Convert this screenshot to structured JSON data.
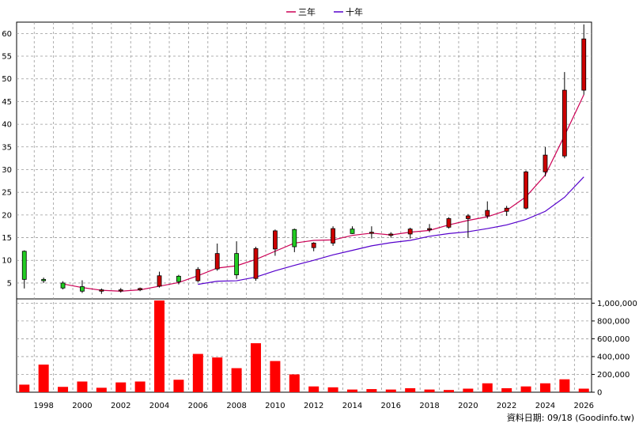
{
  "legend": [
    {
      "label": "三年",
      "color": "#cc0055"
    },
    {
      "label": "十年",
      "color": "#5500cc"
    }
  ],
  "footer": "資料日期: 09/18 (Goodinfo.tw)",
  "colors": {
    "up": "#cc0000",
    "down": "#22cc22",
    "volume": "#ff0000",
    "grid": "#999999"
  },
  "chart_data": [
    {
      "type": "candlestick",
      "title": "",
      "x_ticks": [
        "1998",
        "2000",
        "2002",
        "2004",
        "2006",
        "2008",
        "2010",
        "2012",
        "2014",
        "2016",
        "2018",
        "2020",
        "2022",
        "2024",
        "2026"
      ],
      "y_ticks": [
        5,
        10,
        15,
        20,
        25,
        30,
        35,
        40,
        45,
        50,
        55,
        60
      ],
      "ylim": [
        1.5,
        62.5
      ],
      "xlim": [
        1996.6,
        2026.4
      ],
      "candles": [
        {
          "x": 1997,
          "o": 12,
          "h": 12.2,
          "l": 3.8,
          "c": 5.8
        },
        {
          "x": 1998,
          "o": 5.8,
          "h": 6.2,
          "l": 5.0,
          "c": 5.5
        },
        {
          "x": 1999,
          "o": 5.0,
          "h": 5.4,
          "l": 3.6,
          "c": 3.9
        },
        {
          "x": 2000,
          "o": 4.2,
          "h": 5.6,
          "l": 2.8,
          "c": 3.2
        },
        {
          "x": 2001,
          "o": 3.2,
          "h": 3.8,
          "l": 2.6,
          "c": 3.5
        },
        {
          "x": 2002,
          "o": 3.4,
          "h": 3.9,
          "l": 2.9,
          "c": 3.5
        },
        {
          "x": 2003,
          "o": 3.5,
          "h": 4.0,
          "l": 3.2,
          "c": 3.8
        },
        {
          "x": 2004,
          "o": 4.3,
          "h": 7.5,
          "l": 4.0,
          "c": 6.6
        },
        {
          "x": 2005,
          "o": 6.5,
          "h": 6.8,
          "l": 4.7,
          "c": 5.3
        },
        {
          "x": 2006,
          "o": 5.5,
          "h": 8.5,
          "l": 5.2,
          "c": 8.0
        },
        {
          "x": 2007,
          "o": 8.1,
          "h": 13.7,
          "l": 7.7,
          "c": 11.5
        },
        {
          "x": 2008,
          "o": 11.5,
          "h": 14.2,
          "l": 5.9,
          "c": 6.8
        },
        {
          "x": 2009,
          "o": 6.0,
          "h": 13.0,
          "l": 5.5,
          "c": 12.6
        },
        {
          "x": 2010,
          "o": 12.5,
          "h": 16.8,
          "l": 11.0,
          "c": 16.5
        },
        {
          "x": 2011,
          "o": 16.8,
          "h": 17.0,
          "l": 11.8,
          "c": 13.0
        },
        {
          "x": 2012,
          "o": 12.8,
          "h": 14.0,
          "l": 12.0,
          "c": 13.8
        },
        {
          "x": 2013,
          "o": 13.8,
          "h": 17.5,
          "l": 13.2,
          "c": 17.0
        },
        {
          "x": 2014,
          "o": 16.9,
          "h": 17.5,
          "l": 15.8,
          "c": 15.9
        },
        {
          "x": 2015,
          "o": 16.0,
          "h": 17.5,
          "l": 14.8,
          "c": 16.2
        },
        {
          "x": 2016,
          "o": 15.5,
          "h": 16.2,
          "l": 15.0,
          "c": 15.8
        },
        {
          "x": 2017,
          "o": 15.8,
          "h": 17.2,
          "l": 14.8,
          "c": 16.9
        },
        {
          "x": 2018,
          "o": 17.0,
          "h": 18.0,
          "l": 16.2,
          "c": 17.0
        },
        {
          "x": 2019,
          "o": 17.3,
          "h": 19.5,
          "l": 17.0,
          "c": 19.2
        },
        {
          "x": 2020,
          "o": 19.2,
          "h": 20.2,
          "l": 15.0,
          "c": 19.8
        },
        {
          "x": 2021,
          "o": 19.8,
          "h": 23.0,
          "l": 19.2,
          "c": 21.0
        },
        {
          "x": 2022,
          "o": 20.8,
          "h": 22.0,
          "l": 19.8,
          "c": 21.5
        },
        {
          "x": 2023,
          "o": 21.5,
          "h": 29.8,
          "l": 21.2,
          "c": 29.5
        },
        {
          "x": 2024,
          "o": 29.5,
          "h": 35.0,
          "l": 28.5,
          "c": 33.2
        },
        {
          "x": 2025,
          "o": 33.0,
          "h": 51.5,
          "l": 32.5,
          "c": 47.5
        },
        {
          "x": 2026,
          "o": 47.5,
          "h": 62.0,
          "l": 46.5,
          "c": 58.8
        }
      ],
      "series": [
        {
          "name": "三年",
          "color": "#cc0055",
          "x": [
            1999,
            2000,
            2001,
            2002,
            2003,
            2004,
            2005,
            2006,
            2007,
            2008,
            2009,
            2010,
            2011,
            2012,
            2013,
            2014,
            2015,
            2016,
            2017,
            2018,
            2019,
            2020,
            2021,
            2022,
            2023,
            2024,
            2025,
            2026
          ],
          "y": [
            4.8,
            4.0,
            3.4,
            3.2,
            3.5,
            4.3,
            5.1,
            6.6,
            8.3,
            8.8,
            10.2,
            12.0,
            13.8,
            14.4,
            14.5,
            15.5,
            16.0,
            15.6,
            16.2,
            16.6,
            17.8,
            18.8,
            19.6,
            21.0,
            24.0,
            28.8,
            37.5,
            46.5
          ]
        },
        {
          "name": "十年",
          "color": "#5500cc",
          "x": [
            2006,
            2007,
            2008,
            2009,
            2010,
            2011,
            2012,
            2013,
            2014,
            2015,
            2016,
            2017,
            2018,
            2019,
            2020,
            2021,
            2022,
            2023,
            2024,
            2025,
            2026
          ],
          "y": [
            4.7,
            5.4,
            5.5,
            6.3,
            7.7,
            8.9,
            10.0,
            11.2,
            12.2,
            13.2,
            13.9,
            14.4,
            15.3,
            15.9,
            16.3,
            17.0,
            17.8,
            19.0,
            20.8,
            23.9,
            28.4
          ]
        }
      ]
    },
    {
      "type": "bar",
      "title": "",
      "y_ticks": [
        "0",
        "200,000",
        "400,000",
        "600,000",
        "800,000",
        "1,000,000"
      ],
      "y_tick_values": [
        0,
        200000,
        400000,
        600000,
        800000,
        1000000
      ],
      "ylim": [
        0,
        1030000
      ],
      "x": [
        1997,
        1998,
        1999,
        2000,
        2001,
        2002,
        2003,
        2004,
        2005,
        2006,
        2007,
        2008,
        2009,
        2010,
        2011,
        2012,
        2013,
        2014,
        2015,
        2016,
        2017,
        2018,
        2019,
        2020,
        2021,
        2022,
        2023,
        2024,
        2025,
        2026
      ],
      "values": [
        85000,
        310000,
        60000,
        120000,
        50000,
        110000,
        120000,
        1030000,
        140000,
        430000,
        390000,
        270000,
        550000,
        350000,
        200000,
        65000,
        55000,
        30000,
        35000,
        30000,
        45000,
        30000,
        25000,
        40000,
        100000,
        45000,
        65000,
        100000,
        145000,
        40000
      ]
    }
  ]
}
